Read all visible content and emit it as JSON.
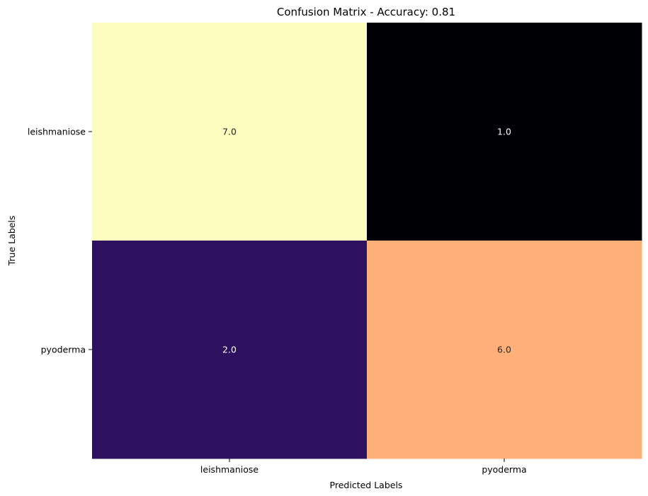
{
  "chart_data": {
    "type": "heatmap",
    "title": "Confusion Matrix - Accuracy: 0.81",
    "xlabel": "Predicted Labels",
    "ylabel": "True Labels",
    "x_categories": [
      "leishmaniose",
      "pyoderma"
    ],
    "y_categories": [
      "leishmaniose",
      "pyoderma"
    ],
    "values": [
      [
        7.0,
        1.0
      ],
      [
        2.0,
        6.0
      ]
    ],
    "value_labels": [
      [
        "7.0",
        "1.0"
      ],
      [
        "2.0",
        "6.0"
      ]
    ],
    "colorscale": "magma",
    "colorbar": false,
    "cell_colors": [
      [
        "#fcfdbf",
        "#000004"
      ],
      [
        "#2d115f",
        "#feb078"
      ]
    ],
    "cell_text_colors": [
      [
        "#262626",
        "#ffffff"
      ],
      [
        "#ffffff",
        "#262626"
      ]
    ]
  }
}
